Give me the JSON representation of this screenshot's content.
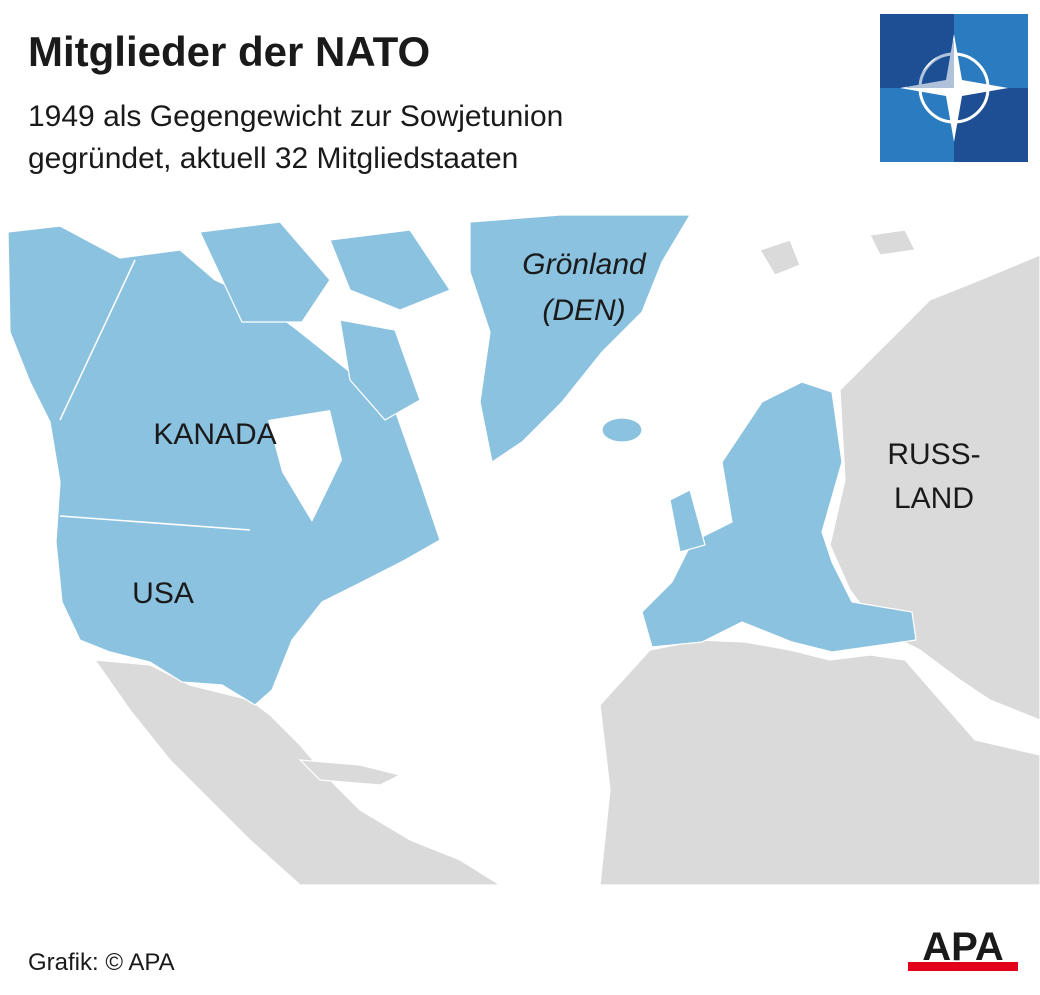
{
  "header": {
    "title": "Mitglieder der NATO",
    "subtitle": [
      "1949 als Gegengewicht zur Sowjetunion",
      "gegründet, aktuell 32 Mitgliedstaaten"
    ]
  },
  "map": {
    "labels": [
      {
        "lines": [
          "KANADA"
        ]
      },
      {
        "lines": [
          "USA"
        ]
      },
      {
        "lines": [
          "Grönland",
          "(DEN)"
        ]
      },
      {
        "lines": [
          "RUSS-",
          "LAND"
        ]
      }
    ]
  },
  "footer": {
    "source": "Grafik: © APA",
    "logo": "APA"
  }
}
